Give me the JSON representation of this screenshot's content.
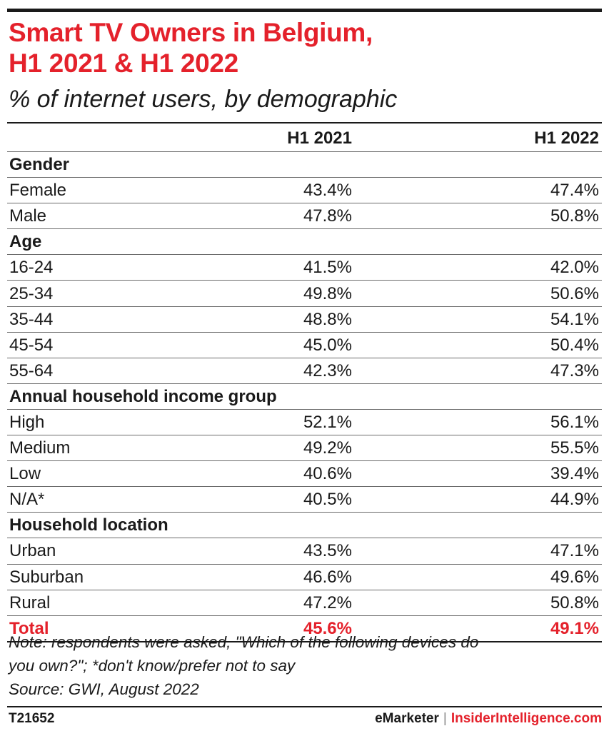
{
  "title_line1": "Smart TV Owners in Belgium,",
  "title_line2": "H1 2021 & H1 2022",
  "subtitle": "% of internet users, by demographic",
  "colors": {
    "accent": "#e4212b",
    "text": "#1a1a1a"
  },
  "chart_data": {
    "type": "table",
    "columns": [
      "",
      "H1 2021",
      "H1 2022"
    ],
    "sections": [
      {
        "label": "Gender",
        "rows": [
          {
            "label": "Female",
            "values": [
              "43.4%",
              "47.4%"
            ]
          },
          {
            "label": "Male",
            "values": [
              "47.8%",
              "50.8%"
            ]
          }
        ]
      },
      {
        "label": "Age",
        "rows": [
          {
            "label": "16-24",
            "values": [
              "41.5%",
              "42.0%"
            ]
          },
          {
            "label": "25-34",
            "values": [
              "49.8%",
              "50.6%"
            ]
          },
          {
            "label": "35-44",
            "values": [
              "48.8%",
              "54.1%"
            ]
          },
          {
            "label": "45-54",
            "values": [
              "45.0%",
              "50.4%"
            ]
          },
          {
            "label": "55-64",
            "values": [
              "42.3%",
              "47.3%"
            ]
          }
        ]
      },
      {
        "label": "Annual household income group",
        "rows": [
          {
            "label": "High",
            "values": [
              "52.1%",
              "56.1%"
            ]
          },
          {
            "label": "Medium",
            "values": [
              "49.2%",
              "55.5%"
            ]
          },
          {
            "label": "Low",
            "values": [
              "40.6%",
              "39.4%"
            ]
          },
          {
            "label": "N/A*",
            "values": [
              "40.5%",
              "44.9%"
            ]
          }
        ]
      },
      {
        "label": "Household location",
        "rows": [
          {
            "label": "Urban",
            "values": [
              "43.5%",
              "47.1%"
            ]
          },
          {
            "label": "Suburban",
            "values": [
              "46.6%",
              "49.6%"
            ]
          },
          {
            "label": "Rural",
            "values": [
              "47.2%",
              "50.8%"
            ]
          }
        ]
      }
    ],
    "total": {
      "label": "Total",
      "values": [
        "45.6%",
        "49.1%"
      ]
    }
  },
  "note_line1": "Note: respondents were asked, \"Which of the following devices do",
  "note_line2": "you own?\"; *don't know/prefer not to say",
  "source": "Source: GWI, August 2022",
  "footer": {
    "id": "T21652",
    "brand1": "eMarketer",
    "separator": "|",
    "brand2": "InsiderIntelligence.com"
  }
}
